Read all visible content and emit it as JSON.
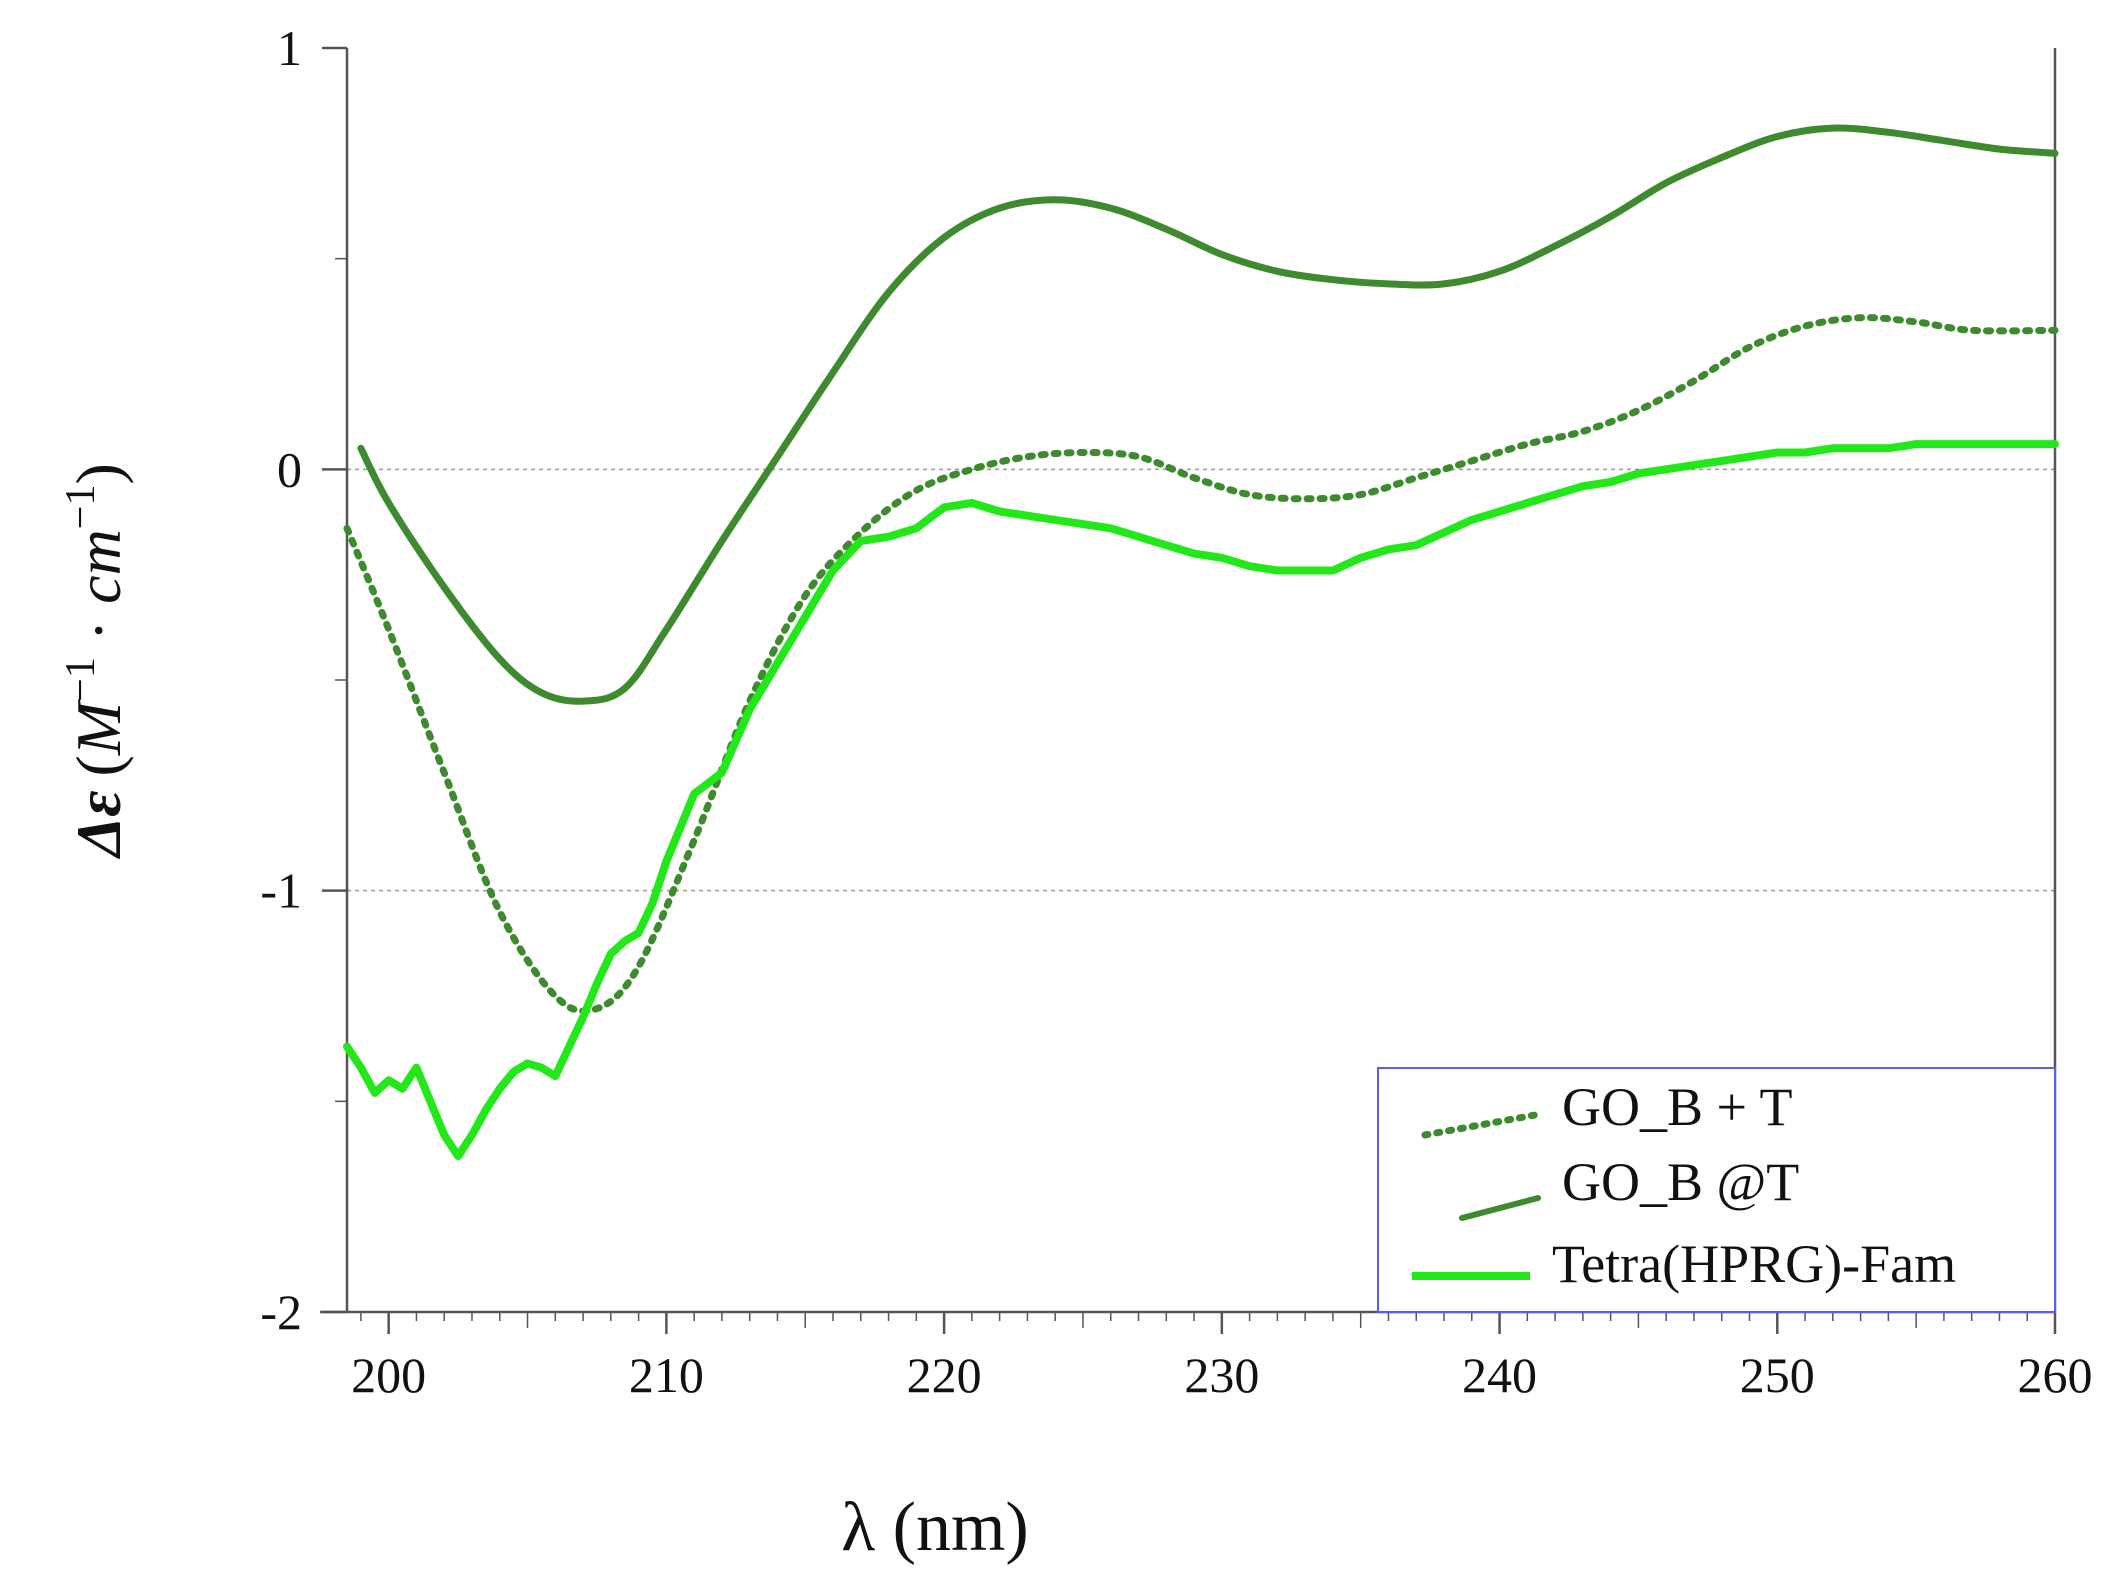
{
  "chart_data": {
    "type": "line",
    "title": "",
    "xlabel": "λ (nm)",
    "ylabel_parts": {
      "symbol": "Δε",
      "open": "(",
      "m": "M",
      "exp1": "−1",
      "dot": " · ",
      "cm": "cm",
      "exp2": "−1",
      "close": ")"
    },
    "xlim": [
      198.5,
      260
    ],
    "ylim": [
      -2,
      1
    ],
    "x_ticks": [
      200,
      210,
      220,
      230,
      240,
      250,
      260
    ],
    "x_tick_labels": [
      "200",
      "210",
      "220",
      "230",
      "240",
      "250",
      "260"
    ],
    "y_ticks": [
      -2,
      -1,
      0,
      1
    ],
    "y_tick_labels": [
      "-2",
      "-1",
      "0",
      "1"
    ],
    "gridlines_y": [
      -1,
      0
    ],
    "legend_position": "bottom-right",
    "colors": {
      "dark_green": "#3e8a2e",
      "bright_green": "#22e81a",
      "legend_border": "#5a5aff",
      "grid": "#999999"
    },
    "series": [
      {
        "name": "GO_B + T",
        "style": "dotted",
        "color": "#3e8a2e",
        "x": [
          198.5,
          200,
          202,
          204,
          206,
          207.5,
          209,
          211,
          213,
          215,
          217,
          219,
          221,
          223,
          225,
          227,
          229,
          231,
          233,
          235,
          237,
          239,
          241,
          243,
          245,
          247,
          249,
          251,
          253,
          255,
          257,
          260
        ],
        "y": [
          -0.14,
          -0.38,
          -0.72,
          -1.05,
          -1.25,
          -1.28,
          -1.18,
          -0.88,
          -0.55,
          -0.3,
          -0.15,
          -0.05,
          0.0,
          0.03,
          0.04,
          0.03,
          -0.02,
          -0.06,
          -0.07,
          -0.06,
          -0.02,
          0.02,
          0.06,
          0.09,
          0.14,
          0.21,
          0.29,
          0.34,
          0.36,
          0.35,
          0.33,
          0.33
        ]
      },
      {
        "name": "GO_B @T",
        "style": "solid",
        "color": "#3e8a2e",
        "x": [
          199,
          200,
          202,
          204,
          205.5,
          207,
          208.5,
          210,
          212,
          214,
          216,
          218,
          220,
          222,
          224,
          226,
          228,
          230,
          232,
          234,
          236,
          238,
          240,
          242,
          244,
          246,
          248,
          250,
          252,
          254,
          256,
          258,
          260
        ],
        "y": [
          0.05,
          -0.08,
          -0.28,
          -0.45,
          -0.53,
          -0.55,
          -0.52,
          -0.38,
          -0.17,
          0.03,
          0.23,
          0.42,
          0.55,
          0.62,
          0.64,
          0.62,
          0.57,
          0.51,
          0.47,
          0.45,
          0.44,
          0.44,
          0.47,
          0.53,
          0.6,
          0.68,
          0.74,
          0.79,
          0.81,
          0.8,
          0.78,
          0.76,
          0.75
        ]
      },
      {
        "name": "Tetra(HPRG)-Fam",
        "style": "solid",
        "color": "#22e81a",
        "x": [
          198.5,
          199,
          199.5,
          200,
          200.5,
          201,
          201.5,
          202,
          202.5,
          203,
          203.5,
          204,
          204.5,
          205,
          205.5,
          206,
          206.5,
          207,
          207.5,
          208,
          208.5,
          209,
          209.5,
          210,
          211,
          212,
          213,
          214,
          215,
          216,
          217,
          218,
          219,
          220,
          221,
          222,
          223,
          224,
          225,
          226,
          227,
          228,
          229,
          230,
          231,
          232,
          233,
          234,
          235,
          236,
          237,
          238,
          239,
          240,
          241,
          242,
          243,
          244,
          245,
          246,
          247,
          248,
          249,
          250,
          251,
          252,
          253,
          254,
          255,
          256,
          257,
          258,
          259,
          260
        ],
        "y": [
          -1.37,
          -1.42,
          -1.48,
          -1.45,
          -1.47,
          -1.42,
          -1.5,
          -1.58,
          -1.63,
          -1.58,
          -1.52,
          -1.47,
          -1.43,
          -1.41,
          -1.42,
          -1.44,
          -1.37,
          -1.3,
          -1.22,
          -1.15,
          -1.12,
          -1.1,
          -1.03,
          -0.93,
          -0.77,
          -0.72,
          -0.57,
          -0.46,
          -0.35,
          -0.24,
          -0.17,
          -0.16,
          -0.14,
          -0.09,
          -0.08,
          -0.1,
          -0.11,
          -0.12,
          -0.13,
          -0.14,
          -0.16,
          -0.18,
          -0.2,
          -0.21,
          -0.23,
          -0.24,
          -0.24,
          -0.24,
          -0.21,
          -0.19,
          -0.18,
          -0.15,
          -0.12,
          -0.1,
          -0.08,
          -0.06,
          -0.04,
          -0.03,
          -0.01,
          0.0,
          0.01,
          0.02,
          0.03,
          0.04,
          0.04,
          0.05,
          0.05,
          0.05,
          0.06,
          0.06,
          0.06,
          0.06,
          0.06,
          0.06
        ]
      }
    ]
  }
}
